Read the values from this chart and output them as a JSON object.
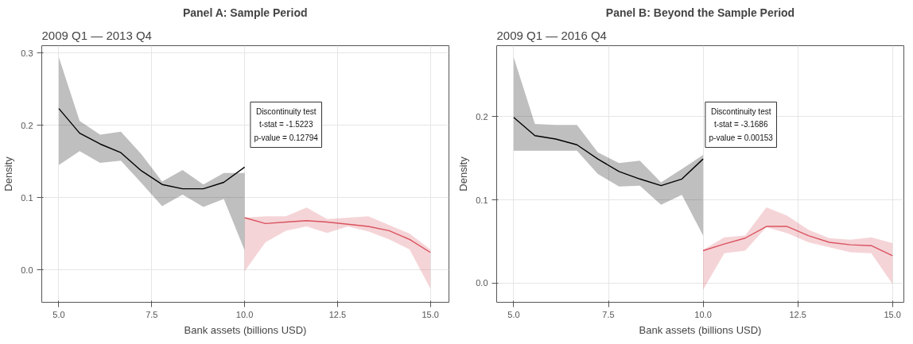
{
  "chart_data": [
    {
      "type": "line",
      "title": "Panel A: Sample Period",
      "subtitle": "2009 Q1 — 2013 Q4",
      "xlabel": "Bank assets (billions USD)",
      "ylabel": "Density",
      "annotations": [
        "Discontinuity test",
        "t-stat = -1.5223",
        "p-value = 0.12794"
      ],
      "xlim": [
        4.54,
        15.5
      ],
      "ylim": [
        -0.045,
        0.31
      ],
      "xticks": [
        {
          "value": 5,
          "label": "5.0"
        },
        {
          "value": 7.5,
          "label": "7.5"
        },
        {
          "value": 10,
          "label": "10.0"
        },
        {
          "value": 12.5,
          "label": "12.5"
        },
        {
          "value": 15,
          "label": "15.0"
        }
      ],
      "yticks": [
        {
          "value": 0,
          "label": "0.0"
        },
        {
          "value": 0.1,
          "label": "0.1"
        },
        {
          "value": 0.2,
          "label": "0.2"
        },
        {
          "value": 0.3,
          "label": "0.3"
        }
      ],
      "grid": true,
      "series": [
        {
          "color": "#000000",
          "x": [
            5.0,
            5.56,
            6.11,
            6.67,
            7.22,
            7.78,
            8.33,
            8.89,
            9.44,
            10.0
          ],
          "values": [
            0.223,
            0.189,
            0.174,
            0.162,
            0.137,
            0.118,
            0.112,
            0.112,
            0.121,
            0.142
          ],
          "lower": [
            0.145,
            0.164,
            0.148,
            0.151,
            0.12,
            0.088,
            0.104,
            0.087,
            0.098,
            0.027
          ],
          "upper": [
            0.294,
            0.206,
            0.187,
            0.191,
            0.16,
            0.122,
            0.138,
            0.118,
            0.134,
            0.134
          ]
        },
        {
          "color": "#d9535f",
          "x": [
            10.0,
            10.56,
            11.11,
            11.67,
            12.22,
            12.78,
            13.33,
            13.89,
            14.44,
            15.0
          ],
          "values": [
            0.072,
            0.064,
            0.066,
            0.068,
            0.066,
            0.063,
            0.06,
            0.054,
            0.042,
            0.024
          ],
          "lower": [
            -0.002,
            0.038,
            0.054,
            0.06,
            0.051,
            0.06,
            0.053,
            0.042,
            0.028,
            -0.026
          ],
          "upper": [
            0.072,
            0.074,
            0.074,
            0.086,
            0.07,
            0.072,
            0.074,
            0.062,
            0.05,
            0.028
          ]
        }
      ]
    },
    {
      "type": "line",
      "title": "Panel B: Beyond the Sample Period",
      "subtitle": "2009 Q1 — 2016 Q4",
      "xlabel": "Bank assets (billions USD)",
      "ylabel": "Density",
      "annotations": [
        "Discontinuity test",
        "t-stat = -3.1686",
        "p-value = 0.00153"
      ],
      "xlim": [
        4.55,
        15.3
      ],
      "ylim": [
        -0.023,
        0.285
      ],
      "xticks": [
        {
          "value": 5,
          "label": "5.0"
        },
        {
          "value": 7.5,
          "label": "7.5"
        },
        {
          "value": 10,
          "label": "10.0"
        },
        {
          "value": 12.5,
          "label": "12.5"
        },
        {
          "value": 15,
          "label": "15.0"
        }
      ],
      "yticks": [
        {
          "value": 0,
          "label": "0.0"
        },
        {
          "value": 0.1,
          "label": "0.1"
        },
        {
          "value": 0.2,
          "label": "0.2"
        }
      ],
      "grid": true,
      "series": [
        {
          "color": "#000000",
          "x": [
            5.0,
            5.56,
            6.11,
            6.67,
            7.22,
            7.78,
            8.33,
            8.89,
            9.44,
            10.0
          ],
          "values": [
            0.199,
            0.177,
            0.173,
            0.166,
            0.149,
            0.134,
            0.125,
            0.117,
            0.125,
            0.149
          ],
          "lower": [
            0.159,
            0.159,
            0.159,
            0.159,
            0.131,
            0.116,
            0.117,
            0.094,
            0.106,
            0.057
          ],
          "upper": [
            0.271,
            0.191,
            0.19,
            0.19,
            0.157,
            0.144,
            0.147,
            0.121,
            0.137,
            0.154
          ]
        },
        {
          "color": "#d9535f",
          "x": [
            10.0,
            10.56,
            11.11,
            11.67,
            12.22,
            12.78,
            13.33,
            13.89,
            14.44,
            15.0
          ],
          "values": [
            0.039,
            0.047,
            0.054,
            0.068,
            0.068,
            0.057,
            0.049,
            0.046,
            0.045,
            0.033
          ],
          "lower": [
            -0.008,
            0.036,
            0.039,
            0.067,
            0.06,
            0.049,
            0.043,
            0.037,
            0.036,
            -0.001
          ],
          "upper": [
            0.04,
            0.055,
            0.057,
            0.091,
            0.081,
            0.064,
            0.054,
            0.052,
            0.055,
            0.048
          ]
        }
      ]
    }
  ]
}
